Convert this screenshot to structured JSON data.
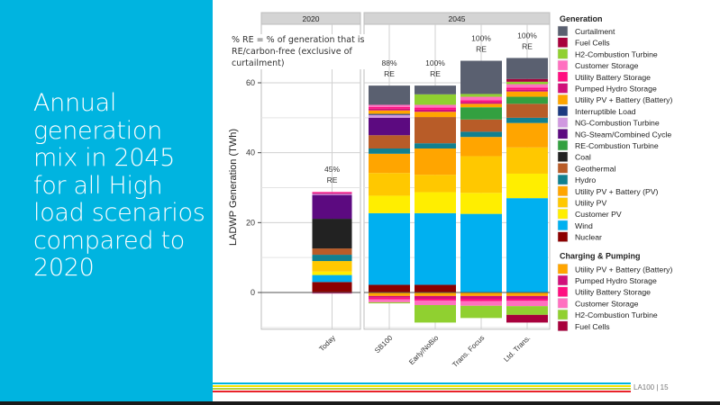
{
  "slide": {
    "title": "Annual generation mix in 2045 for all High load scenarios compared to 2020",
    "footer": "LA100  |  15",
    "accent": "#00b4e0",
    "footer_line_colors": [
      "#00b4e0",
      "#f5e400",
      "#b6d33c",
      "#e8232a"
    ]
  },
  "annotation": "% RE = % of generation that is RE/carbon-free (exclusive of curtailment)",
  "chart_data": {
    "type": "bar",
    "stacked": true,
    "ylabel": "LADWP Generation (TWh)",
    "xlabel": "",
    "ylim": [
      -10,
      68
    ],
    "yticks": [
      0,
      20,
      40,
      60
    ],
    "grid": true,
    "facets": [
      {
        "label": "2020",
        "categories": [
          "Today"
        ]
      },
      {
        "label": "2045",
        "categories": [
          "SB100",
          "Early/NoBio",
          "Trans. Focus",
          "Ltd. Trans."
        ]
      }
    ],
    "categories": [
      "Today",
      "SB100",
      "Early/NoBio",
      "Trans. Focus",
      "Ltd. Trans."
    ],
    "re_labels": [
      "45%\nRE",
      "88%\nRE",
      "100%\nRE",
      "100%\nRE",
      "100%\nRE"
    ],
    "legend_position": "right",
    "legend_generation_title": "Generation",
    "legend_charging_title": "Charging & Pumping",
    "generation_series": [
      {
        "name": "Nuclear",
        "color": "#8b0000",
        "values": [
          3.0,
          2.2,
          2.2,
          0,
          0
        ]
      },
      {
        "name": "Wind",
        "color": "#00b0f0",
        "values": [
          2.0,
          20.5,
          20.5,
          22.5,
          27.0
        ]
      },
      {
        "name": "Customer PV",
        "color": "#ffee00",
        "values": [
          1.0,
          5.0,
          6.0,
          6.0,
          7.0
        ]
      },
      {
        "name": "Utility PV",
        "color": "#ffc800",
        "values": [
          3.0,
          6.5,
          5.0,
          10.5,
          7.5
        ]
      },
      {
        "name": "Utility PV + Battery (PV)",
        "color": "#ffa500",
        "values": [
          0,
          5.5,
          7.5,
          5.5,
          7.0
        ]
      },
      {
        "name": "Hydro",
        "color": "#108090",
        "values": [
          1.8,
          1.5,
          1.5,
          1.5,
          1.5
        ]
      },
      {
        "name": "Geothermal",
        "color": "#b85c28",
        "values": [
          1.8,
          3.8,
          7.5,
          3.5,
          4.0
        ]
      },
      {
        "name": "Coal",
        "color": "#222222",
        "values": [
          8.5,
          0,
          0,
          0,
          0
        ]
      },
      {
        "name": "RE-Combustion Turbine",
        "color": "#33a040",
        "values": [
          0,
          0,
          0,
          3.5,
          2.0
        ]
      },
      {
        "name": "NG-Steam/Combined Cycle",
        "color": "#5c0a80",
        "values": [
          6.8,
          5.0,
          0,
          0,
          0
        ]
      },
      {
        "name": "NG-Combustion Turbine",
        "color": "#d098e0",
        "values": [
          0.3,
          0.8,
          0,
          0,
          0
        ]
      },
      {
        "name": "Interruptible Load",
        "color": "#1c3a80",
        "values": [
          0,
          0.3,
          0,
          0,
          0
        ]
      },
      {
        "name": "Utility PV + Battery (Battery)",
        "color": "#ffa500",
        "values": [
          0,
          1.0,
          1.5,
          1.0,
          1.5
        ]
      },
      {
        "name": "Pumped Hydro Storage",
        "color": "#d0107a",
        "values": [
          0.3,
          0.5,
          0.6,
          0.5,
          0.5
        ]
      },
      {
        "name": "Utility Battery Storage",
        "color": "#ff0f80",
        "values": [
          0.2,
          0.5,
          0.6,
          0.5,
          0.6
        ]
      },
      {
        "name": "Customer Storage",
        "color": "#ff70c0",
        "values": [
          0.1,
          0.6,
          0.8,
          1.0,
          1.0
        ]
      },
      {
        "name": "H2-Combustion Turbine",
        "color": "#90d030",
        "values": [
          0,
          0,
          3.0,
          0.8,
          0.7
        ]
      },
      {
        "name": "Fuel Cells",
        "color": "#a8003c",
        "values": [
          0,
          0,
          0,
          0,
          0.8
        ]
      },
      {
        "name": "Curtailment",
        "color": "#5a6070",
        "values": [
          0,
          5.5,
          2.5,
          9.5,
          6.0
        ]
      }
    ],
    "charging_series": [
      {
        "name": "Utility PV + Battery (Battery)",
        "color": "#ffa500",
        "values": [
          0,
          -1.0,
          -1.0,
          -1.0,
          -1.0
        ]
      },
      {
        "name": "Pumped Hydro Storage",
        "color": "#d0107a",
        "values": [
          -0.3,
          -0.5,
          -0.8,
          -0.8,
          -0.8
        ]
      },
      {
        "name": "Utility Battery Storage",
        "color": "#ff0f80",
        "values": [
          0,
          -0.5,
          -0.5,
          -0.7,
          -0.6
        ]
      },
      {
        "name": "Customer Storage",
        "color": "#ff70c0",
        "values": [
          0,
          -0.8,
          -1.3,
          -1.3,
          -1.5
        ]
      },
      {
        "name": "H2-Combustion Turbine",
        "color": "#90d030",
        "values": [
          0,
          -0.3,
          -5.0,
          -3.5,
          -2.5
        ]
      },
      {
        "name": "Fuel Cells",
        "color": "#a8003c",
        "values": [
          0,
          0,
          0,
          0,
          -2.2
        ]
      }
    ],
    "legend_generation": [
      {
        "name": "Curtailment",
        "color": "#5a6070"
      },
      {
        "name": "Fuel Cells",
        "color": "#a8003c"
      },
      {
        "name": "H2-Combustion Turbine",
        "color": "#90d030"
      },
      {
        "name": "Customer Storage",
        "color": "#ff70c0"
      },
      {
        "name": "Utility Battery Storage",
        "color": "#ff0f80"
      },
      {
        "name": "Pumped Hydro Storage",
        "color": "#d0107a"
      },
      {
        "name": "Utility PV + Battery (Battery)",
        "color": "#ffa500"
      },
      {
        "name": "Interruptible Load",
        "color": "#1c3a80"
      },
      {
        "name": "NG-Combustion Turbine",
        "color": "#d098e0"
      },
      {
        "name": "NG-Steam/Combined Cycle",
        "color": "#5c0a80"
      },
      {
        "name": "RE-Combustion Turbine",
        "color": "#33a040"
      },
      {
        "name": "Coal",
        "color": "#222222"
      },
      {
        "name": "Geothermal",
        "color": "#b85c28"
      },
      {
        "name": "Hydro",
        "color": "#108090"
      },
      {
        "name": "Utility PV + Battery (PV)",
        "color": "#ffa500"
      },
      {
        "name": "Utility PV",
        "color": "#ffc800"
      },
      {
        "name": "Customer PV",
        "color": "#ffee00"
      },
      {
        "name": "Wind",
        "color": "#00b0f0"
      },
      {
        "name": "Nuclear",
        "color": "#8b0000"
      }
    ],
    "legend_charging": [
      {
        "name": "Utility PV + Battery (Battery)",
        "color": "#ffa500"
      },
      {
        "name": "Pumped Hydro Storage",
        "color": "#d0107a"
      },
      {
        "name": "Utility Battery Storage",
        "color": "#ff0f80"
      },
      {
        "name": "Customer Storage",
        "color": "#ff70c0"
      },
      {
        "name": "H2-Combustion Turbine",
        "color": "#90d030"
      },
      {
        "name": "Fuel Cells",
        "color": "#a8003c"
      }
    ]
  }
}
